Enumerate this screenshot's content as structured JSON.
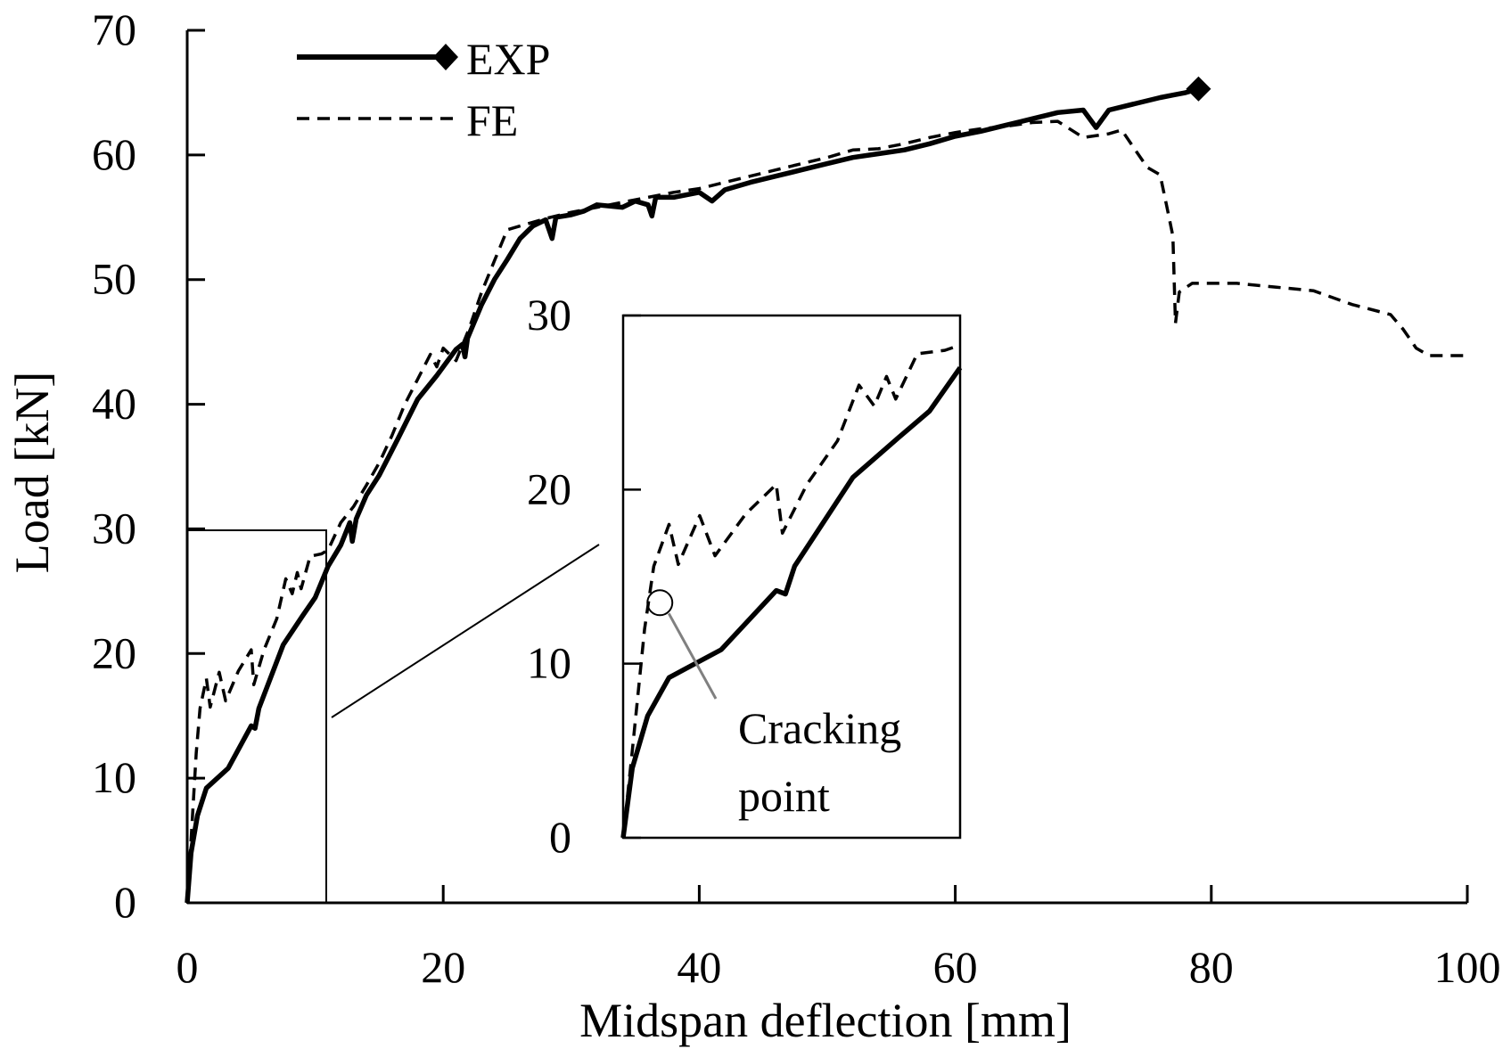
{
  "chart_data": {
    "type": "line",
    "title": "",
    "xlabel": "Midspan deflection [mm]",
    "ylabel": "Load [kN]",
    "xlim": [
      0,
      100
    ],
    "ylim": [
      0,
      70
    ],
    "xticks": [
      0,
      20,
      40,
      60,
      80,
      100
    ],
    "yticks": [
      0,
      10,
      20,
      30,
      40,
      50,
      60,
      70
    ],
    "grid": false,
    "legend_position": "top-left",
    "series": [
      {
        "name": "EXP",
        "style": "solid",
        "marker_at_end": "diamond",
        "points": [
          [
            0,
            0
          ],
          [
            0.3,
            4
          ],
          [
            0.8,
            7
          ],
          [
            1.5,
            9.2
          ],
          [
            3.2,
            10.8
          ],
          [
            5,
            14.2
          ],
          [
            5.3,
            14.0
          ],
          [
            5.6,
            15.6
          ],
          [
            7.5,
            20.7
          ],
          [
            9,
            23
          ],
          [
            10,
            24.5
          ],
          [
            11,
            27
          ],
          [
            12,
            28.7
          ],
          [
            12.7,
            30.5
          ],
          [
            12.9,
            29
          ],
          [
            13.2,
            30.8
          ],
          [
            14,
            32.7
          ],
          [
            15,
            34.3
          ],
          [
            16.5,
            37.3
          ],
          [
            18,
            40.4
          ],
          [
            19.5,
            42.3
          ],
          [
            21,
            44.4
          ],
          [
            21.5,
            44.8
          ],
          [
            21.7,
            43.8
          ],
          [
            21.9,
            45.3
          ],
          [
            23,
            48
          ],
          [
            24,
            50
          ],
          [
            25,
            51.6
          ],
          [
            26,
            53.3
          ],
          [
            27,
            54.3
          ],
          [
            28,
            54.8
          ],
          [
            28.5,
            53.3
          ],
          [
            28.8,
            55
          ],
          [
            30,
            55.2
          ],
          [
            31,
            55.5
          ],
          [
            32,
            56
          ],
          [
            34,
            55.8
          ],
          [
            35,
            56.3
          ],
          [
            36,
            56
          ],
          [
            36.3,
            55.1
          ],
          [
            36.6,
            56.6
          ],
          [
            38,
            56.6
          ],
          [
            40,
            57
          ],
          [
            41,
            56.3
          ],
          [
            42,
            57.2
          ],
          [
            44,
            57.8
          ],
          [
            46,
            58.3
          ],
          [
            48,
            58.8
          ],
          [
            50,
            59.3
          ],
          [
            52,
            59.8
          ],
          [
            54,
            60.1
          ],
          [
            56,
            60.4
          ],
          [
            58,
            60.9
          ],
          [
            60,
            61.5
          ],
          [
            62,
            61.9
          ],
          [
            64,
            62.4
          ],
          [
            66,
            62.9
          ],
          [
            68,
            63.4
          ],
          [
            70,
            63.6
          ],
          [
            71,
            62.2
          ],
          [
            72,
            63.6
          ],
          [
            74,
            64.1
          ],
          [
            76,
            64.6
          ],
          [
            77,
            64.8
          ],
          [
            78,
            65
          ],
          [
            79,
            65.3
          ]
        ]
      },
      {
        "name": "FE",
        "style": "dashed",
        "points": [
          [
            0,
            0
          ],
          [
            0.3,
            5
          ],
          [
            0.7,
            12
          ],
          [
            1,
            15.6
          ],
          [
            1.5,
            18
          ],
          [
            1.8,
            15.7
          ],
          [
            2.5,
            18.5
          ],
          [
            3,
            16.2
          ],
          [
            4,
            18.6
          ],
          [
            5,
            20.3
          ],
          [
            5.2,
            17.5
          ],
          [
            6,
            20.3
          ],
          [
            7,
            22.8
          ],
          [
            7.7,
            26
          ],
          [
            8.2,
            24.8
          ],
          [
            8.6,
            26.5
          ],
          [
            8.9,
            25.2
          ],
          [
            9.6,
            27.8
          ],
          [
            10.5,
            28
          ],
          [
            11,
            28.3
          ],
          [
            12,
            30.5
          ],
          [
            13,
            31.8
          ],
          [
            14,
            33.5
          ],
          [
            15,
            35.3
          ],
          [
            16,
            37.5
          ],
          [
            17,
            40
          ],
          [
            18,
            42
          ],
          [
            19,
            44
          ],
          [
            19.5,
            43
          ],
          [
            20,
            44.5
          ],
          [
            21,
            43.5
          ],
          [
            22,
            46
          ],
          [
            23,
            49
          ],
          [
            24,
            51.5
          ],
          [
            25,
            54
          ],
          [
            26,
            54.3
          ],
          [
            27,
            54.6
          ],
          [
            28,
            54.9
          ],
          [
            30,
            55.4
          ],
          [
            32,
            55.8
          ],
          [
            34,
            56.2
          ],
          [
            36,
            56.6
          ],
          [
            38,
            57
          ],
          [
            40,
            57.3
          ],
          [
            42,
            57.8
          ],
          [
            44,
            58.3
          ],
          [
            46,
            58.8
          ],
          [
            48,
            59.3
          ],
          [
            50,
            59.8
          ],
          [
            52,
            60.4
          ],
          [
            54,
            60.5
          ],
          [
            56,
            60.9
          ],
          [
            58,
            61.4
          ],
          [
            60,
            61.8
          ],
          [
            62,
            62.1
          ],
          [
            64,
            62.3
          ],
          [
            66,
            62.6
          ],
          [
            68,
            62.7
          ],
          [
            70,
            61.4
          ],
          [
            72,
            61.7
          ],
          [
            73,
            62
          ],
          [
            74,
            60.5
          ],
          [
            75,
            59
          ],
          [
            76,
            58.4
          ],
          [
            76.5,
            56
          ],
          [
            77,
            53.5
          ],
          [
            77.2,
            46.5
          ],
          [
            77.5,
            49
          ],
          [
            78.5,
            49.7
          ],
          [
            80,
            49.7
          ],
          [
            82,
            49.7
          ],
          [
            85,
            49.4
          ],
          [
            88,
            49.1
          ],
          [
            91,
            48
          ],
          [
            94,
            47.2
          ],
          [
            95,
            46
          ],
          [
            96,
            44.5
          ],
          [
            97,
            43.9
          ],
          [
            100,
            43.9
          ]
        ]
      }
    ],
    "inset": {
      "xlim": [
        0,
        11
      ],
      "ylim": [
        0,
        30
      ],
      "yticks": [
        0,
        10,
        20,
        30
      ],
      "annotation": [
        "Cracking",
        "point"
      ],
      "cracking_point": [
        1.2,
        13.5
      ]
    }
  }
}
